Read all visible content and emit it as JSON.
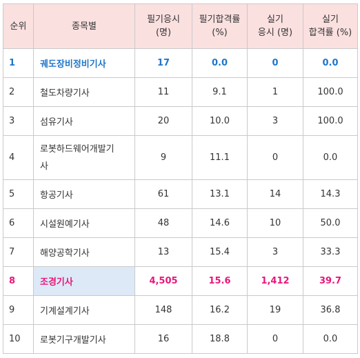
{
  "headers": {
    "rank": "순위",
    "name": "종목별",
    "written_applicants": [
      "필기응시",
      "(명)"
    ],
    "written_pass_rate": [
      "필기합격률",
      "(%)"
    ],
    "practical_applicants": [
      "실기",
      "응시 (명)"
    ],
    "practical_pass_rate": [
      "실기",
      "합격률 (%)"
    ]
  },
  "rows": [
    {
      "rank": "1",
      "name": "궤도장비정비기사",
      "written_applicants": "17",
      "written_pass_rate": "0.0",
      "practical_applicants": "0",
      "practical_pass_rate": "0.0",
      "highlight": "blue"
    },
    {
      "rank": "2",
      "name": "철도차량기사",
      "written_applicants": "11",
      "written_pass_rate": "9.1",
      "practical_applicants": "1",
      "practical_pass_rate": "100.0"
    },
    {
      "rank": "3",
      "name": "섬유기사",
      "written_applicants": "20",
      "written_pass_rate": "10.0",
      "practical_applicants": "3",
      "practical_pass_rate": "100.0"
    },
    {
      "rank": "4",
      "name_line1": "로봇하드웨어개발기",
      "name_line2": "사",
      "written_applicants": "9",
      "written_pass_rate": "11.1",
      "practical_applicants": "0",
      "practical_pass_rate": "0.0"
    },
    {
      "rank": "5",
      "name": "항공기사",
      "written_applicants": "61",
      "written_pass_rate": "13.1",
      "practical_applicants": "14",
      "practical_pass_rate": "14.3"
    },
    {
      "rank": "6",
      "name": "시설원예기사",
      "written_applicants": "48",
      "written_pass_rate": "14.6",
      "practical_applicants": "10",
      "practical_pass_rate": "50.0"
    },
    {
      "rank": "7",
      "name": "해양공학기사",
      "written_applicants": "13",
      "written_pass_rate": "15.4",
      "practical_applicants": "3",
      "practical_pass_rate": "33.3"
    },
    {
      "rank": "8",
      "name": "조경기사",
      "written_applicants": "4,505",
      "written_pass_rate": "15.6",
      "practical_applicants": "1,412",
      "practical_pass_rate": "39.7",
      "highlight": "pink"
    },
    {
      "rank": "9",
      "name": "기계설계기사",
      "written_applicants": "148",
      "written_pass_rate": "16.2",
      "practical_applicants": "19",
      "practical_pass_rate": "36.8"
    },
    {
      "rank": "10",
      "name": "로봇기구개발기사",
      "written_applicants": "16",
      "written_pass_rate": "18.8",
      "practical_applicants": "0",
      "practical_pass_rate": "0.0"
    }
  ],
  "colors": {
    "header_bg": "#fbe0e0",
    "highlight_blue": "#1f77c9",
    "highlight_pink": "#e8177b",
    "highlight_cell_bg": "#dde9f7",
    "border": "#c9c9c9"
  }
}
